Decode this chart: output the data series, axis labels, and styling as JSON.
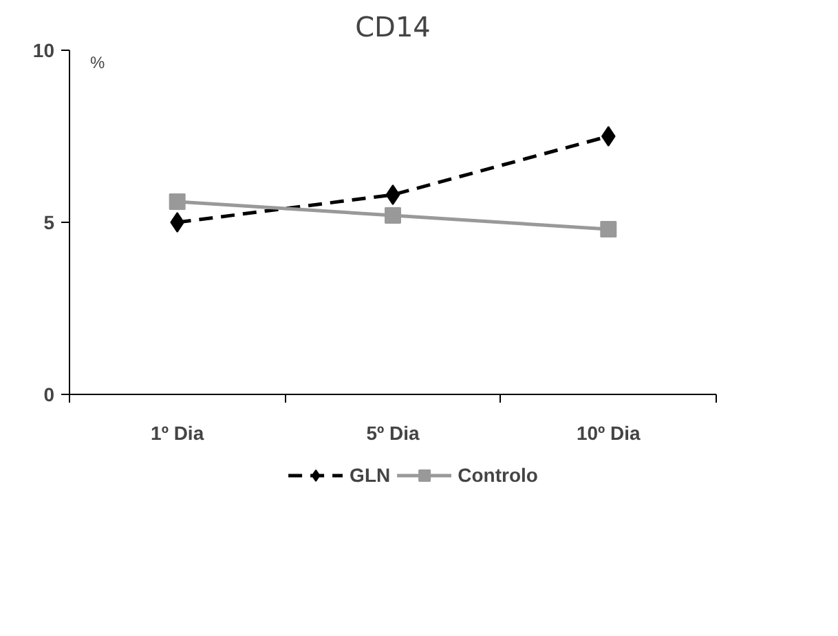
{
  "chart_data": {
    "type": "line",
    "title": "CD14",
    "ylabel": "%",
    "categories": [
      "1º Dia",
      "5º Dia",
      "10º Dia"
    ],
    "series": [
      {
        "name": "GLN",
        "color": "#000000",
        "values": [
          5.0,
          5.8,
          7.5
        ],
        "marker": "diamond",
        "line_style": "dashed"
      },
      {
        "name": "Controlo",
        "color": "#999999",
        "values": [
          5.6,
          5.2,
          4.8
        ],
        "marker": "square",
        "line_style": "solid"
      }
    ],
    "ylim": [
      0,
      10
    ],
    "yticks": [
      0,
      5,
      10
    ],
    "grid": false,
    "legend": "bottom"
  }
}
